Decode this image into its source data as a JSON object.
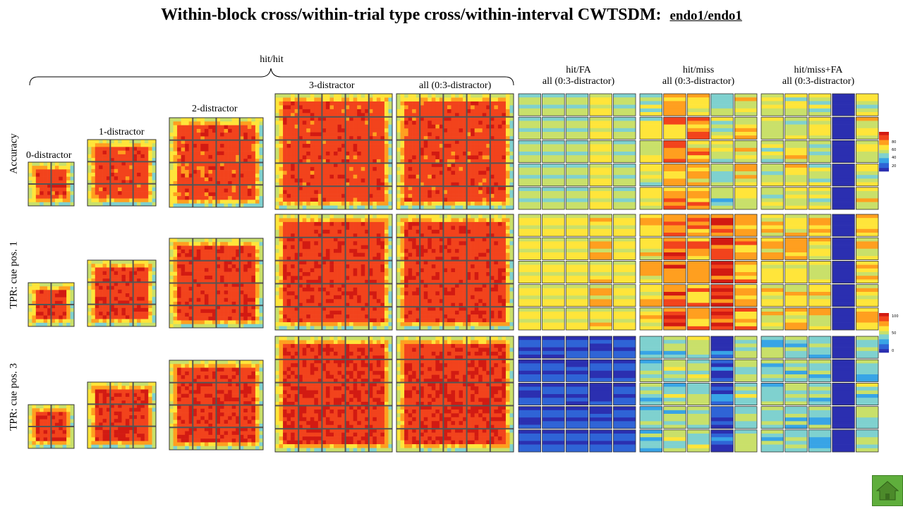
{
  "title": "Within-block cross/within-trial type cross/within-interval CWTSDM:",
  "title_sub": "endo1/endo1",
  "groups": {
    "hit_hit": "hit/hit",
    "hit_fa": "hit/FA",
    "hit_fa_sub": "all (0:3-distractor)",
    "hit_miss": "hit/miss",
    "hit_miss_sub": "all (0:3-distractor)",
    "hit_missfa": "hit/miss+FA",
    "hit_missfa_sub": "all (0:3-distractor)"
  },
  "columns": {
    "d0": "0-distractor",
    "d1": "1-distractor",
    "d2": "2-distractor",
    "d3": "3-distractor",
    "all": "all (0:3-distractor)"
  },
  "rows": [
    "Accuracy",
    "TPR: cue pos. 1",
    "TPR: cue pos. 3"
  ],
  "colorbars": [
    {
      "ticks": [
        "80",
        "60",
        "40",
        "20"
      ]
    },
    {
      "ticks": [
        "100",
        "50",
        "0"
      ]
    }
  ],
  "colormap": [
    "#2b2fb0",
    "#2f64d6",
    "#38a4e6",
    "#7fd1cf",
    "#c9e06a",
    "#ffe53a",
    "#ff9f1f",
    "#f2431c",
    "#d21a12"
  ],
  "chart_data": {
    "type": "heatmap",
    "description_levels": "grid of CWTSDM matrices; each small matrix shows mean level on 0-1 colormap scale",
    "panel_levels": {
      "accuracy": {
        "hit_hit": 0.88,
        "hit_fa": [
          0.5,
          0.5,
          0.5,
          0.62,
          0.5
        ],
        "hit_miss": [
          0.55,
          0.78,
          0.7,
          0.45,
          0.6
        ],
        "hit_missfa": [
          0.5,
          0.55,
          0.5,
          0.0,
          0.55
        ]
      },
      "tpr_cue1": {
        "hit_hit": 0.9,
        "hit_fa": [
          0.62,
          0.62,
          0.62,
          0.7,
          0.62
        ],
        "hit_miss": [
          0.65,
          0.85,
          0.78,
          0.9,
          0.7
        ],
        "hit_missfa": [
          0.6,
          0.62,
          0.6,
          0.0,
          0.62
        ]
      },
      "tpr_cue3": {
        "hit_hit": 0.92,
        "hit_fa": [
          0.08,
          0.08,
          0.08,
          0.08,
          0.08
        ],
        "hit_miss": [
          0.4,
          0.45,
          0.45,
          0.1,
          0.45
        ],
        "hit_missfa": [
          0.4,
          0.42,
          0.4,
          0.0,
          0.42
        ]
      }
    }
  }
}
